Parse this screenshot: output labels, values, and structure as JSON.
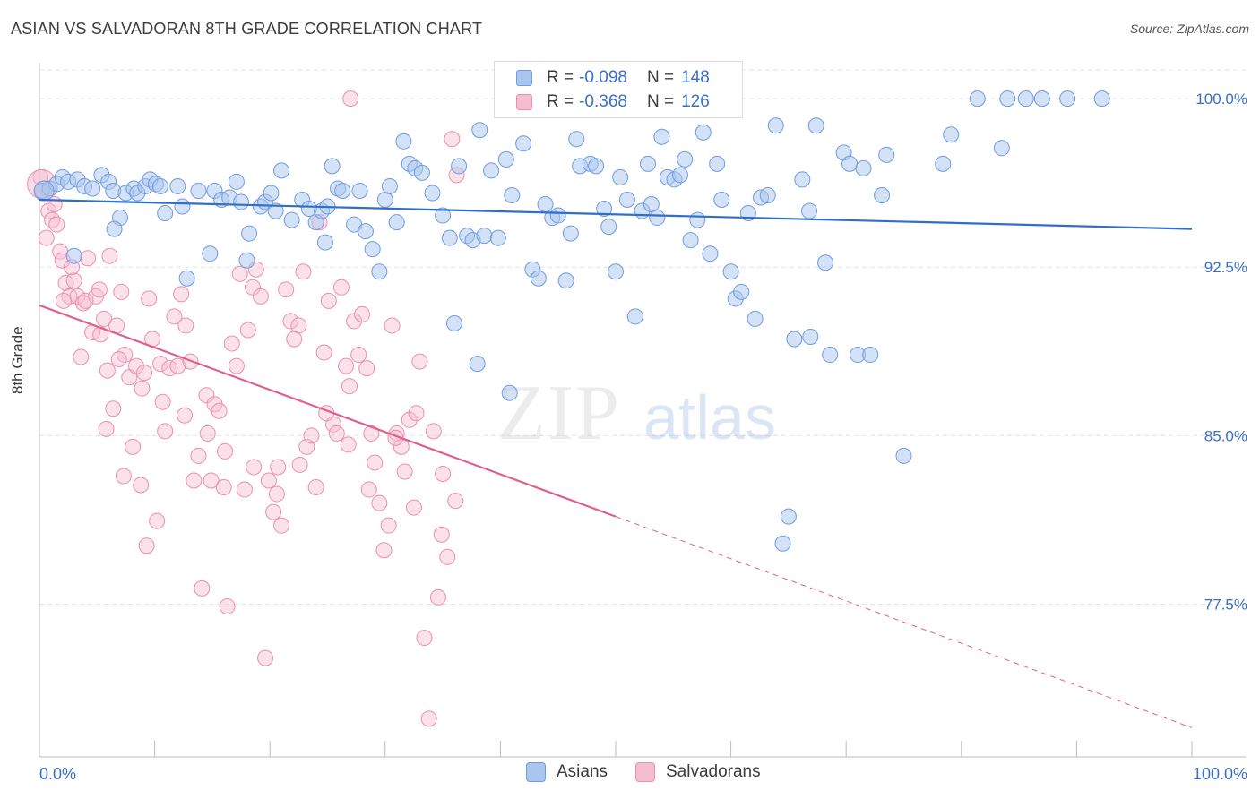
{
  "header": {
    "title": "ASIAN VS SALVADORAN 8TH GRADE CORRELATION CHART",
    "source": "Source: ZipAtlas.com"
  },
  "legend": {
    "asians": {
      "r_label": "R =",
      "r_value": "-0.098",
      "n_label": "N =",
      "n_value": "148"
    },
    "salvadorans": {
      "r_label": "R =",
      "r_value": "-0.368",
      "n_label": "N =",
      "n_value": "126"
    }
  },
  "bottom_legend": {
    "asians": "Asians",
    "salvadorans": "Salvadorans"
  },
  "watermark": {
    "zip": "ZIP",
    "atlas": "atlas"
  },
  "colors": {
    "asian_fill": "#a9c6f0",
    "asian_stroke": "#6f9be0",
    "asian_line": "#2f6fcc",
    "salv_fill": "#f6bdd0",
    "salv_stroke": "#ec8fb0",
    "salv_line": "#e0608c",
    "tick_label": "#3a6fc9",
    "grid": "#e3e3e3"
  },
  "chart_data": {
    "type": "scatter",
    "title": "ASIAN VS SALVADORAN 8TH GRADE CORRELATION CHART",
    "xlabel": "",
    "ylabel": "8th Grade",
    "xlim": [
      0,
      100
    ],
    "ylim": [
      70.7,
      101.6
    ],
    "x_tick_labels": [
      "0.0%",
      "100.0%"
    ],
    "y_ticks": [
      77.5,
      85.0,
      92.5,
      100.0
    ],
    "y_tick_labels": [
      "77.5%",
      "85.0%",
      "92.5%",
      "100.0%"
    ],
    "grid": true,
    "legend_position": "top-center",
    "series": [
      {
        "name": "Asians",
        "r": -0.098,
        "n": 148,
        "trend": {
          "x0": 0,
          "y0": 95.5,
          "x1": 100,
          "y1": 94.2,
          "solid_to": 100
        },
        "points": [
          [
            0.2,
            95.9
          ],
          [
            0.9,
            96.0
          ],
          [
            1.5,
            96.2
          ],
          [
            2.0,
            96.5
          ],
          [
            2.5,
            96.3
          ],
          [
            3.3,
            96.4
          ],
          [
            3.9,
            96.1
          ],
          [
            4.6,
            96.0
          ],
          [
            5.4,
            96.6
          ],
          [
            6.0,
            96.3
          ],
          [
            6.4,
            95.9
          ],
          [
            7.0,
            94.7
          ],
          [
            7.5,
            95.8
          ],
          [
            8.2,
            96.0
          ],
          [
            8.5,
            95.8
          ],
          [
            9.2,
            96.1
          ],
          [
            9.6,
            96.4
          ],
          [
            10.1,
            96.2
          ],
          [
            10.5,
            96.1
          ],
          [
            10.9,
            94.9
          ],
          [
            12.0,
            96.1
          ],
          [
            12.4,
            95.2
          ],
          [
            13.8,
            95.9
          ],
          [
            14.8,
            93.1
          ],
          [
            15.2,
            95.9
          ],
          [
            15.8,
            95.5
          ],
          [
            16.5,
            95.6
          ],
          [
            17.1,
            96.3
          ],
          [
            17.5,
            95.4
          ],
          [
            18.2,
            94.0
          ],
          [
            19.2,
            95.2
          ],
          [
            19.6,
            95.4
          ],
          [
            20.1,
            95.8
          ],
          [
            20.5,
            95.0
          ],
          [
            21.0,
            96.8
          ],
          [
            21.9,
            94.6
          ],
          [
            22.8,
            95.5
          ],
          [
            23.4,
            95.1
          ],
          [
            24.0,
            94.5
          ],
          [
            24.5,
            95.0
          ],
          [
            25.0,
            95.2
          ],
          [
            25.4,
            97.0
          ],
          [
            25.9,
            96.0
          ],
          [
            26.3,
            95.9
          ],
          [
            27.3,
            94.4
          ],
          [
            27.8,
            95.9
          ],
          [
            28.3,
            94.1
          ],
          [
            28.9,
            93.3
          ],
          [
            29.5,
            92.3
          ],
          [
            30.0,
            95.5
          ],
          [
            30.4,
            96.1
          ],
          [
            31.0,
            94.5
          ],
          [
            31.6,
            98.1
          ],
          [
            32.1,
            97.1
          ],
          [
            32.6,
            96.9
          ],
          [
            33.2,
            96.7
          ],
          [
            34.1,
            95.8
          ],
          [
            35.0,
            94.8
          ],
          [
            35.6,
            93.8
          ],
          [
            36.4,
            97.0
          ],
          [
            37.1,
            93.9
          ],
          [
            37.6,
            93.7
          ],
          [
            38.2,
            98.6
          ],
          [
            38.6,
            93.9
          ],
          [
            39.2,
            96.8
          ],
          [
            39.8,
            93.8
          ],
          [
            40.5,
            97.3
          ],
          [
            41.0,
            95.7
          ],
          [
            42.0,
            98.0
          ],
          [
            42.8,
            92.4
          ],
          [
            43.3,
            92.0
          ],
          [
            43.9,
            95.3
          ],
          [
            44.5,
            94.7
          ],
          [
            45.0,
            94.8
          ],
          [
            45.7,
            91.9
          ],
          [
            46.1,
            94.0
          ],
          [
            46.6,
            98.2
          ],
          [
            46.9,
            97.0
          ],
          [
            47.8,
            97.1
          ],
          [
            48.3,
            97.0
          ],
          [
            49.0,
            95.1
          ],
          [
            49.4,
            94.3
          ],
          [
            50.0,
            92.3
          ],
          [
            50.4,
            96.5
          ],
          [
            51.0,
            95.5
          ],
          [
            51.7,
            90.3
          ],
          [
            52.3,
            95.0
          ],
          [
            52.8,
            97.1
          ],
          [
            53.1,
            95.3
          ],
          [
            53.6,
            94.7
          ],
          [
            54.0,
            98.3
          ],
          [
            54.5,
            96.5
          ],
          [
            55.1,
            96.4
          ],
          [
            55.6,
            96.6
          ],
          [
            56.0,
            97.3
          ],
          [
            56.5,
            93.7
          ],
          [
            57.1,
            94.6
          ],
          [
            57.6,
            98.5
          ],
          [
            58.2,
            93.1
          ],
          [
            58.8,
            97.1
          ],
          [
            59.2,
            95.5
          ],
          [
            60.0,
            92.3
          ],
          [
            60.4,
            91.1
          ],
          [
            60.9,
            91.4
          ],
          [
            61.5,
            94.9
          ],
          [
            62.1,
            90.2
          ],
          [
            62.6,
            95.6
          ],
          [
            63.2,
            95.7
          ],
          [
            63.9,
            98.8
          ],
          [
            64.5,
            80.2
          ],
          [
            65.0,
            81.4
          ],
          [
            65.5,
            89.3
          ],
          [
            66.2,
            96.4
          ],
          [
            66.8,
            95.0
          ],
          [
            66.9,
            89.4
          ],
          [
            67.4,
            98.8
          ],
          [
            68.2,
            92.7
          ],
          [
            68.6,
            88.6
          ],
          [
            69.8,
            97.6
          ],
          [
            70.3,
            97.1
          ],
          [
            71.0,
            88.6
          ],
          [
            71.5,
            96.9
          ],
          [
            72.1,
            88.6
          ],
          [
            73.1,
            95.7
          ],
          [
            73.5,
            97.5
          ],
          [
            75.0,
            84.1
          ],
          [
            78.4,
            97.1
          ],
          [
            79.1,
            98.4
          ],
          [
            81.4,
            100.0
          ],
          [
            83.5,
            97.8
          ],
          [
            84.0,
            100.0
          ],
          [
            85.6,
            100.0
          ],
          [
            87.0,
            100.0
          ],
          [
            89.2,
            100.0
          ],
          [
            92.2,
            100.0
          ],
          [
            3.0,
            93.0
          ],
          [
            6.5,
            94.2
          ],
          [
            12.8,
            92.0
          ],
          [
            18.0,
            92.8
          ],
          [
            24.8,
            93.6
          ],
          [
            36.0,
            90.0
          ],
          [
            38.0,
            88.2
          ],
          [
            40.8,
            86.9
          ]
        ]
      },
      {
        "name": "Salvadorans",
        "r": -0.368,
        "n": 126,
        "trend": {
          "x0": 0,
          "y0": 90.8,
          "x1": 100,
          "y1": 72.0,
          "solid_to": 50
        },
        "points": [
          [
            0.1,
            96.5
          ],
          [
            0.5,
            96.0
          ],
          [
            0.8,
            95.0
          ],
          [
            1.1,
            94.6
          ],
          [
            1.5,
            94.4
          ],
          [
            1.8,
            93.2
          ],
          [
            2.0,
            92.8
          ],
          [
            2.3,
            91.8
          ],
          [
            2.6,
            91.2
          ],
          [
            3.0,
            91.9
          ],
          [
            3.3,
            91.2
          ],
          [
            3.8,
            90.9
          ],
          [
            4.2,
            92.9
          ],
          [
            4.6,
            89.6
          ],
          [
            4.9,
            91.2
          ],
          [
            5.2,
            91.5
          ],
          [
            5.6,
            90.2
          ],
          [
            5.9,
            87.9
          ],
          [
            6.1,
            93.0
          ],
          [
            6.4,
            86.2
          ],
          [
            6.7,
            89.9
          ],
          [
            7.1,
            91.4
          ],
          [
            7.4,
            88.6
          ],
          [
            7.8,
            87.6
          ],
          [
            8.1,
            84.5
          ],
          [
            8.4,
            88.1
          ],
          [
            8.8,
            82.8
          ],
          [
            9.1,
            87.8
          ],
          [
            9.5,
            91.1
          ],
          [
            9.8,
            89.3
          ],
          [
            10.2,
            81.2
          ],
          [
            10.5,
            88.2
          ],
          [
            10.9,
            85.2
          ],
          [
            11.3,
            88.0
          ],
          [
            11.7,
            90.3
          ],
          [
            12.0,
            88.1
          ],
          [
            12.3,
            91.3
          ],
          [
            12.7,
            89.9
          ],
          [
            13.1,
            88.3
          ],
          [
            13.4,
            83.0
          ],
          [
            13.8,
            84.1
          ],
          [
            14.1,
            78.2
          ],
          [
            14.5,
            86.8
          ],
          [
            14.9,
            83.0
          ],
          [
            15.2,
            86.4
          ],
          [
            15.6,
            86.1
          ],
          [
            16.0,
            82.7
          ],
          [
            16.3,
            77.4
          ],
          [
            16.7,
            89.1
          ],
          [
            17.1,
            88.1
          ],
          [
            17.4,
            92.2
          ],
          [
            17.8,
            82.6
          ],
          [
            18.1,
            89.7
          ],
          [
            18.5,
            91.6
          ],
          [
            18.8,
            92.4
          ],
          [
            19.2,
            91.2
          ],
          [
            19.6,
            75.1
          ],
          [
            19.9,
            83.0
          ],
          [
            20.3,
            81.6
          ],
          [
            20.7,
            83.6
          ],
          [
            21.0,
            81.0
          ],
          [
            21.4,
            91.5
          ],
          [
            21.8,
            90.1
          ],
          [
            22.1,
            89.3
          ],
          [
            22.5,
            89.9
          ],
          [
            22.9,
            92.3
          ],
          [
            23.2,
            84.5
          ],
          [
            23.6,
            85.0
          ],
          [
            24.0,
            82.7
          ],
          [
            24.3,
            94.5
          ],
          [
            24.7,
            88.7
          ],
          [
            25.1,
            91.0
          ],
          [
            25.5,
            85.5
          ],
          [
            25.8,
            85.1
          ],
          [
            26.2,
            91.6
          ],
          [
            26.6,
            88.1
          ],
          [
            26.9,
            87.2
          ],
          [
            27.3,
            90.1
          ],
          [
            27.7,
            88.6
          ],
          [
            28.0,
            90.4
          ],
          [
            28.4,
            88.0
          ],
          [
            28.8,
            85.1
          ],
          [
            29.1,
            83.8
          ],
          [
            29.5,
            82.0
          ],
          [
            29.9,
            79.9
          ],
          [
            30.3,
            81.0
          ],
          [
            30.6,
            89.9
          ],
          [
            31.0,
            85.1
          ],
          [
            31.4,
            84.5
          ],
          [
            31.7,
            83.4
          ],
          [
            32.1,
            85.7
          ],
          [
            32.5,
            81.8
          ],
          [
            33.0,
            88.3
          ],
          [
            33.4,
            76.0
          ],
          [
            33.8,
            72.4
          ],
          [
            34.2,
            85.2
          ],
          [
            34.6,
            77.8
          ],
          [
            35.0,
            83.3
          ],
          [
            35.4,
            79.6
          ],
          [
            35.8,
            98.2
          ],
          [
            36.2,
            96.6
          ],
          [
            27.0,
            100.0
          ],
          [
            0.3,
            95.8
          ],
          [
            1.3,
            95.3
          ],
          [
            2.8,
            92.5
          ],
          [
            4.0,
            91.0
          ],
          [
            5.3,
            89.5
          ],
          [
            6.9,
            88.4
          ],
          [
            8.9,
            87.1
          ],
          [
            10.7,
            86.5
          ],
          [
            12.6,
            85.9
          ],
          [
            14.6,
            85.1
          ],
          [
            16.1,
            84.3
          ],
          [
            18.6,
            83.6
          ],
          [
            20.6,
            82.4
          ],
          [
            22.6,
            83.7
          ],
          [
            24.9,
            86.0
          ],
          [
            26.8,
            84.6
          ],
          [
            28.6,
            82.6
          ],
          [
            30.9,
            84.9
          ],
          [
            32.7,
            86.0
          ],
          [
            34.9,
            80.6
          ],
          [
            36.1,
            82.1
          ],
          [
            0.6,
            93.8
          ],
          [
            2.1,
            91.0
          ],
          [
            3.6,
            88.5
          ],
          [
            5.8,
            85.3
          ],
          [
            7.3,
            83.2
          ],
          [
            9.3,
            80.1
          ]
        ]
      }
    ]
  }
}
